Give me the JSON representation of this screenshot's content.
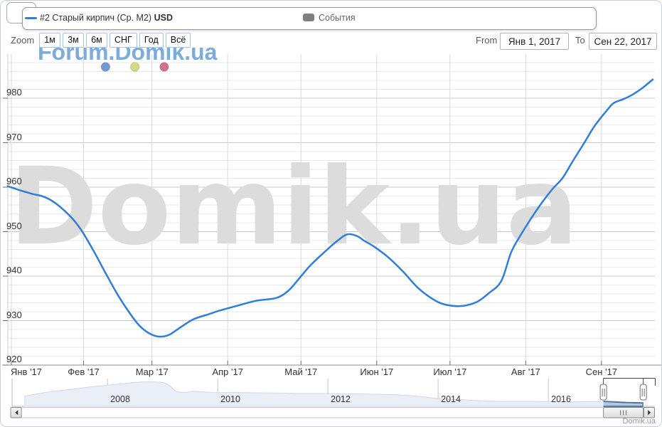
{
  "legend": {
    "series_label": "#2 Старый кирпич (Ср. М2)",
    "series_unit": "USD",
    "series_color": "#2f7ed8",
    "events_label": "События",
    "events_marker_color": "#7f7f7f"
  },
  "toolbar": {
    "zoom_label": "Zoom",
    "range_buttons": [
      "1м",
      "3м",
      "6м",
      "СНГ",
      "Год",
      "Всё"
    ],
    "from_label": "From",
    "from_value": "Янв 1, 2017",
    "to_label": "To",
    "to_value": "Сен 22, 2017"
  },
  "watermark_top": "Forum.Domik.ua",
  "watermark_center": "Domik.ua",
  "credit": "Domik.ua",
  "chart_data": {
    "type": "line",
    "title": "",
    "series": [
      {
        "name": "#2 Старый кирпич (Ср. М2) USD",
        "color": "#2f7ed8",
        "points": [
          [
            "2017-01-01",
            960.2
          ],
          [
            "2017-01-06",
            959.3
          ],
          [
            "2017-01-11",
            958.5
          ],
          [
            "2017-01-16",
            957.8
          ],
          [
            "2017-01-21",
            956.2
          ],
          [
            "2017-01-27",
            953.2
          ],
          [
            "2017-01-31",
            950.4
          ],
          [
            "2017-02-05",
            945.8
          ],
          [
            "2017-02-10",
            940.7
          ],
          [
            "2017-02-15",
            935.8
          ],
          [
            "2017-02-20",
            931.6
          ],
          [
            "2017-02-24",
            928.8
          ],
          [
            "2017-02-28",
            927.1
          ],
          [
            "2017-03-04",
            926.4
          ],
          [
            "2017-03-08",
            926.8
          ],
          [
            "2017-03-13",
            928.6
          ],
          [
            "2017-03-18",
            930.3
          ],
          [
            "2017-03-24",
            931.4
          ],
          [
            "2017-03-29",
            932.3
          ],
          [
            "2017-04-06",
            933.5
          ],
          [
            "2017-04-13",
            934.5
          ],
          [
            "2017-04-21",
            935.1
          ],
          [
            "2017-04-26",
            936.8
          ],
          [
            "2017-04-30",
            939.3
          ],
          [
            "2017-05-05",
            942.5
          ],
          [
            "2017-05-11",
            945.6
          ],
          [
            "2017-05-16",
            948.0
          ],
          [
            "2017-05-20",
            949.4
          ],
          [
            "2017-05-24",
            949.0
          ],
          [
            "2017-05-27",
            947.9
          ],
          [
            "2017-05-31",
            946.6
          ],
          [
            "2017-06-06",
            944.1
          ],
          [
            "2017-06-12",
            940.9
          ],
          [
            "2017-06-18",
            937.3
          ],
          [
            "2017-06-25",
            934.5
          ],
          [
            "2017-06-30",
            933.5
          ],
          [
            "2017-07-06",
            933.3
          ],
          [
            "2017-07-12",
            934.2
          ],
          [
            "2017-07-17",
            936.2
          ],
          [
            "2017-07-22",
            938.9
          ],
          [
            "2017-07-26",
            945.3
          ],
          [
            "2017-07-30",
            949.3
          ],
          [
            "2017-08-03",
            952.8
          ],
          [
            "2017-08-08",
            956.8
          ],
          [
            "2017-08-12",
            959.6
          ],
          [
            "2017-08-16",
            962.0
          ],
          [
            "2017-08-20",
            965.6
          ],
          [
            "2017-08-25",
            970.0
          ],
          [
            "2017-08-29",
            973.6
          ],
          [
            "2017-09-03",
            977.1
          ],
          [
            "2017-09-06",
            978.9
          ],
          [
            "2017-09-10",
            979.8
          ],
          [
            "2017-09-14",
            980.9
          ],
          [
            "2017-09-18",
            982.4
          ],
          [
            "2017-09-22",
            984.2
          ]
        ]
      }
    ],
    "event_markers": [
      {
        "date": "2017-02-10",
        "color": "#6f9bd2"
      },
      {
        "date": "2017-02-22",
        "color": "#d6da7e"
      },
      {
        "date": "2017-03-06",
        "color": "#d2718f"
      }
    ],
    "y_axis": {
      "min": 920,
      "max": 989,
      "major_ticks": [
        920,
        930,
        940,
        950,
        960,
        970,
        980
      ],
      "minor_step": 2,
      "grid": true
    },
    "x_axis": {
      "range": [
        "2017-01-01",
        "2017-09-22"
      ],
      "tick_labels": [
        "Янв '17",
        "Фев '17",
        "Мар '17",
        "Апр '17",
        "Май '17",
        "Июн '17",
        "Июл '17",
        "Авг '17",
        "Сен '17"
      ]
    },
    "navigator": {
      "type": "area",
      "year_labels": [
        2008,
        2010,
        2012,
        2014,
        2016
      ],
      "selected_range": [
        "2017-01-01",
        "2017-09-22"
      ],
      "value_axis_estimated_range": [
        850,
        2150
      ],
      "points": [
        [
          2006.5,
          1330
        ],
        [
          2006.7,
          1420
        ],
        [
          2007.0,
          1550
        ],
        [
          2007.35,
          1650
        ],
        [
          2007.6,
          1735
        ],
        [
          2007.9,
          1818
        ],
        [
          2008.1,
          1868
        ],
        [
          2008.3,
          1918
        ],
        [
          2008.55,
          1983
        ],
        [
          2008.75,
          1995
        ],
        [
          2008.95,
          1983
        ],
        [
          2009.05,
          1935
        ],
        [
          2009.15,
          1770
        ],
        [
          2009.25,
          1555
        ],
        [
          2009.4,
          1500
        ],
        [
          2009.55,
          1560
        ],
        [
          2009.7,
          1535
        ],
        [
          2010.0,
          1490
        ],
        [
          2010.3,
          1500
        ],
        [
          2010.7,
          1485
        ],
        [
          2011.2,
          1468
        ],
        [
          2011.6,
          1452
        ],
        [
          2012.05,
          1452
        ],
        [
          2012.5,
          1435
        ],
        [
          2012.9,
          1418
        ],
        [
          2013.3,
          1385
        ],
        [
          2013.7,
          1302
        ],
        [
          2014.0,
          1220
        ],
        [
          2014.5,
          1152
        ],
        [
          2014.9,
          1095
        ],
        [
          2015.3,
          1085
        ],
        [
          2015.7,
          1082
        ],
        [
          2016.05,
          1072
        ],
        [
          2016.45,
          1062
        ],
        [
          2016.8,
          1072
        ],
        [
          2017.02,
          1080
        ],
        [
          2017.4,
          1032
        ],
        [
          2017.72,
          1012
        ]
      ]
    }
  }
}
